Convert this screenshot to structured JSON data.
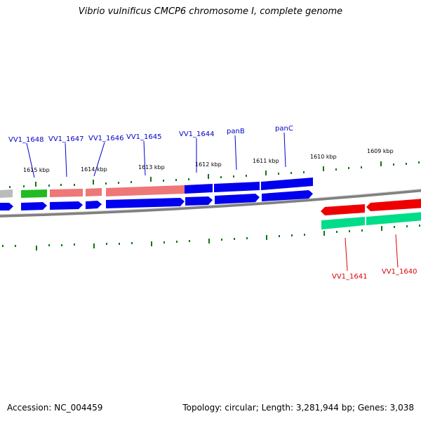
{
  "title": "Vibrio vulnificus CMCP6 chromosome I, complete genome",
  "footer": {
    "accession_label": "Accession:",
    "accession": "NC_004459",
    "topology_label": "Topology:",
    "topology": "circular",
    "length_label": "Length:",
    "length": "3,281,944 bp",
    "genes_label": "Genes:",
    "genes": "3,038"
  },
  "scale_labels": [
    "1615 kbp",
    "1614 kbp",
    "1613 kbp",
    "1612 kbp",
    "1611 kbp",
    "1610 kbp",
    "1609 kbp"
  ],
  "genes": [
    {
      "name": "VV1_1648",
      "strand": "+",
      "color": "#0000cc"
    },
    {
      "name": "VV1_1647",
      "strand": "+",
      "color": "#0000cc"
    },
    {
      "name": "VV1_1646",
      "strand": "+",
      "color": "#0000cc"
    },
    {
      "name": "VV1_1645",
      "strand": "+",
      "color": "#0000cc"
    },
    {
      "name": "VV1_1644",
      "strand": "+",
      "color": "#0000cc"
    },
    {
      "name": "panB",
      "strand": "+",
      "color": "#0000cc"
    },
    {
      "name": "panC",
      "strand": "+",
      "color": "#0000cc"
    },
    {
      "name": "VV1_1641",
      "strand": "-",
      "color": "#dd0000"
    },
    {
      "name": "VV1_1640",
      "strand": "-",
      "color": "#dd0000"
    }
  ],
  "colors": {
    "backbone": "#808080",
    "forward_cds": "#0000ee",
    "reverse_cds": "#ee0000",
    "forward_gene": "#ee7777",
    "forward_gene_blue": "#0000ee",
    "reverse_gene": "#00dd88",
    "rna": "#22bb22",
    "partial": "#bbbbbb",
    "ticks": "#117711",
    "forward_label": "#0000cc",
    "reverse_label": "#dd0000"
  }
}
